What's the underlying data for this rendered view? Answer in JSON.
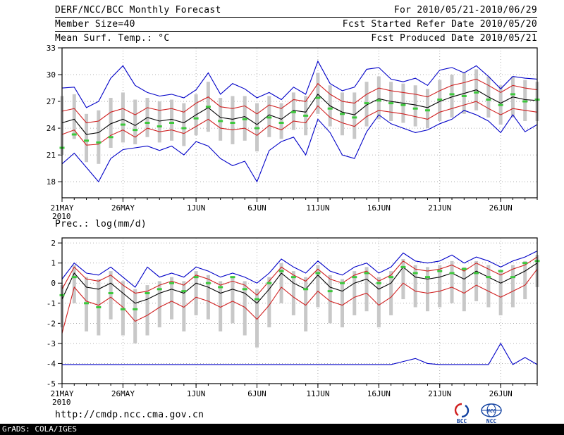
{
  "header": {
    "title": "DERF/NCC/BCC Monthly Forecast",
    "member_size": "Member Size=40",
    "for_range": "For 2010/05/21-2010/06/29",
    "fcst_started": "Fcst Started Refer Date 2010/05/20",
    "fcst_produced": "Fcst Produced Date 2010/05/21"
  },
  "footer": {
    "url": "http://cmdp.ncc.cma.gov.cn",
    "grads": "GrADS: COLA/IGES",
    "logo_bcc": "BCC",
    "logo_ncc": "NCC"
  },
  "chart_data": [
    {
      "type": "line",
      "title": "Mean Surf. Temp.: °C",
      "n": 40,
      "ylim": [
        16.2,
        33
      ],
      "yticks": [
        18,
        21,
        24,
        27,
        30,
        33
      ],
      "xtick_labels": [
        "21MAY",
        "26MAY",
        "1JUN",
        "6JUN",
        "11JUN",
        "16JUN",
        "21JUN",
        "26JUN"
      ],
      "xtick_positions": [
        0,
        5,
        11,
        16,
        21,
        26,
        31,
        36
      ],
      "x_year": "2010",
      "legend_note": "blue=ensemble max/min, red=spread bounds, black=ensemble mean, green=analysis, gray bars=member spread",
      "series": [
        {
          "name": "ensemble-max",
          "color": "#0000c8",
          "values": [
            28.5,
            28.6,
            26.3,
            27.0,
            29.6,
            31.0,
            28.8,
            28.0,
            27.6,
            27.8,
            27.4,
            28.3,
            30.2,
            27.8,
            29.0,
            28.4,
            27.4,
            28.0,
            27.2,
            28.6,
            27.8,
            31.5,
            29.0,
            28.2,
            28.6,
            30.6,
            30.8,
            29.5,
            29.2,
            29.6,
            28.8,
            30.5,
            30.8,
            30.2,
            31.0,
            29.8,
            28.4,
            29.8,
            29.6,
            29.5
          ]
        },
        {
          "name": "upper-bound",
          "color": "#d02020",
          "values": [
            25.9,
            26.2,
            24.6,
            24.8,
            25.8,
            26.2,
            25.5,
            26.3,
            26.0,
            26.2,
            25.8,
            26.8,
            27.5,
            26.4,
            26.2,
            26.5,
            25.6,
            26.6,
            26.2,
            27.2,
            27.0,
            29.0,
            27.8,
            27.0,
            26.8,
            27.8,
            28.5,
            28.2,
            28.0,
            27.8,
            27.5,
            28.2,
            28.8,
            29.1,
            29.5,
            28.8,
            28.0,
            28.8,
            28.5,
            28.3
          ]
        },
        {
          "name": "ensemble-mean",
          "color": "#000000",
          "values": [
            24.6,
            25.0,
            23.3,
            23.5,
            24.5,
            25.0,
            24.3,
            25.2,
            24.8,
            25.0,
            24.6,
            25.5,
            26.3,
            25.2,
            25.0,
            25.3,
            24.4,
            25.5,
            25.0,
            26.0,
            25.8,
            27.8,
            26.5,
            25.8,
            25.5,
            26.6,
            27.3,
            27.0,
            26.8,
            26.6,
            26.3,
            27.0,
            27.5,
            27.9,
            28.3,
            27.5,
            26.8,
            27.5,
            27.2,
            27.1
          ]
        },
        {
          "name": "lower-bound",
          "color": "#d02020",
          "values": [
            23.3,
            23.8,
            22.1,
            22.2,
            23.2,
            23.8,
            23.0,
            24.0,
            23.6,
            23.8,
            23.4,
            24.2,
            25.0,
            24.0,
            23.8,
            24.0,
            23.2,
            24.3,
            23.8,
            24.8,
            24.6,
            26.5,
            25.2,
            24.6,
            24.2,
            25.3,
            26.0,
            25.8,
            25.6,
            25.3,
            25.0,
            25.8,
            26.2,
            26.6,
            27.0,
            26.2,
            25.5,
            26.2,
            26.0,
            25.8
          ]
        },
        {
          "name": "ensemble-min",
          "color": "#0000c8",
          "values": [
            20.0,
            21.2,
            19.6,
            18.0,
            20.6,
            21.6,
            21.8,
            22.0,
            21.5,
            22.0,
            21.0,
            22.5,
            22.0,
            20.6,
            19.8,
            20.3,
            18.0,
            21.5,
            22.5,
            23.0,
            21.0,
            25.0,
            23.5,
            21.0,
            20.6,
            23.6,
            25.5,
            24.5,
            24.0,
            23.5,
            23.8,
            24.5,
            25.0,
            26.0,
            25.5,
            24.8,
            23.5,
            25.5,
            23.6,
            24.4
          ]
        }
      ],
      "bars": {
        "color": "#c8c8c8",
        "low": [
          21.0,
          22.8,
          20.2,
          20.0,
          21.8,
          22.4,
          22.2,
          23.0,
          22.4,
          22.6,
          22.0,
          23.2,
          23.6,
          22.6,
          22.2,
          22.6,
          21.4,
          23.0,
          22.8,
          23.8,
          23.2,
          25.6,
          24.2,
          23.2,
          22.8,
          24.2,
          25.0,
          24.8,
          24.6,
          24.2,
          24.0,
          24.8,
          25.2,
          25.6,
          26.0,
          25.2,
          24.4,
          25.2,
          24.8,
          24.8
        ],
        "high": [
          27.6,
          27.8,
          25.6,
          26.0,
          27.4,
          28.0,
          27.2,
          27.4,
          27.0,
          27.2,
          26.8,
          27.8,
          29.2,
          27.4,
          27.6,
          27.6,
          26.8,
          27.6,
          26.8,
          28.0,
          27.6,
          30.2,
          28.8,
          28.0,
          28.0,
          29.2,
          29.8,
          29.2,
          29.0,
          28.8,
          28.4,
          29.4,
          30.0,
          30.2,
          30.6,
          29.8,
          28.8,
          29.8,
          29.4,
          29.2
        ]
      },
      "markers": {
        "name": "analysis-dash",
        "color": "#3cc83c",
        "values": [
          21.8,
          23.3,
          22.6,
          22.4,
          23.0,
          24.4,
          23.8,
          24.6,
          24.2,
          24.6,
          24.0,
          25.1,
          26.4,
          24.8,
          24.6,
          25.0,
          24.0,
          25.2,
          24.6,
          25.8,
          25.4,
          27.4,
          26.2,
          25.6,
          25.2,
          26.8,
          27.1,
          26.8,
          26.6,
          26.2,
          26.0,
          27.2,
          27.8,
          27.6,
          28.0,
          27.2,
          26.6,
          27.8,
          27.0,
          27.2
        ]
      }
    },
    {
      "type": "line",
      "title": "Prec.: log(mm/d)",
      "n": 40,
      "ylim": [
        -5,
        2.25
      ],
      "yticks": [
        -5,
        -4,
        -3,
        -2,
        -1,
        0,
        1,
        2
      ],
      "xtick_labels": [
        "21MAY",
        "26MAY",
        "1JUN",
        "6JUN",
        "11JUN",
        "16JUN",
        "21JUN",
        "26JUN"
      ],
      "xtick_positions": [
        0,
        5,
        11,
        16,
        21,
        26,
        31,
        36
      ],
      "x_year": "2010",
      "legend_note": "blue=ensemble max/min, red=spread bounds, black=ensemble mean, green=analysis, gray bars=member spread",
      "series": [
        {
          "name": "ensemble-max",
          "color": "#0000c8",
          "values": [
            0.2,
            1.0,
            0.5,
            0.4,
            0.8,
            0.3,
            -0.2,
            0.8,
            0.3,
            0.5,
            0.3,
            0.8,
            0.6,
            0.3,
            0.5,
            0.3,
            0.0,
            0.5,
            1.2,
            0.8,
            0.5,
            1.1,
            0.6,
            0.4,
            0.8,
            1.0,
            0.5,
            0.8,
            1.5,
            1.1,
            1.0,
            1.1,
            1.4,
            1.0,
            1.3,
            1.1,
            0.8,
            1.1,
            1.3,
            1.6
          ]
        },
        {
          "name": "upper-bound",
          "color": "#d02020",
          "values": [
            -0.3,
            0.8,
            0.2,
            0.1,
            0.4,
            -0.1,
            -0.5,
            -0.4,
            -0.1,
            0.1,
            -0.1,
            0.4,
            0.2,
            -0.1,
            0.1,
            -0.1,
            -0.6,
            0.1,
            0.8,
            0.4,
            0.1,
            0.7,
            0.2,
            0.0,
            0.4,
            0.6,
            0.1,
            0.4,
            1.1,
            0.7,
            0.6,
            0.7,
            0.9,
            0.6,
            1.0,
            0.7,
            0.4,
            0.7,
            0.9,
            1.3
          ]
        },
        {
          "name": "ensemble-mean",
          "color": "#000000",
          "values": [
            -0.8,
            0.5,
            -0.2,
            -0.3,
            0.0,
            -0.5,
            -1.0,
            -0.8,
            -0.5,
            -0.3,
            -0.5,
            0.0,
            -0.2,
            -0.5,
            -0.3,
            -0.5,
            -1.0,
            -0.3,
            0.5,
            0.0,
            -0.3,
            0.4,
            -0.2,
            -0.4,
            0.0,
            0.2,
            -0.3,
            0.0,
            0.8,
            0.3,
            0.2,
            0.3,
            0.5,
            0.2,
            0.6,
            0.3,
            0.0,
            0.3,
            0.6,
            1.0
          ]
        },
        {
          "name": "lower-bound",
          "color": "#d02020",
          "values": [
            -2.5,
            -0.2,
            -0.9,
            -1.1,
            -0.7,
            -1.2,
            -1.9,
            -1.6,
            -1.2,
            -0.9,
            -1.2,
            -0.7,
            -0.9,
            -1.2,
            -0.9,
            -1.2,
            -1.8,
            -1.1,
            -0.2,
            -0.7,
            -1.1,
            -0.4,
            -0.9,
            -1.1,
            -0.7,
            -0.5,
            -1.1,
            -0.7,
            0.0,
            -0.4,
            -0.5,
            -0.4,
            -0.2,
            -0.5,
            -0.1,
            -0.4,
            -0.7,
            -0.4,
            -0.1,
            0.7
          ]
        },
        {
          "name": "ensemble-min",
          "color": "#0000c8",
          "values": [
            -4.05,
            -4.05,
            -4.05,
            -4.05,
            -4.05,
            -4.05,
            -4.05,
            -4.05,
            -4.05,
            -4.05,
            -4.05,
            -4.05,
            -4.05,
            -4.05,
            -4.05,
            -4.05,
            -4.05,
            -4.05,
            -4.05,
            -4.05,
            -4.05,
            -4.05,
            -4.05,
            -4.05,
            -4.05,
            -4.05,
            -4.05,
            -4.05,
            -3.9,
            -3.75,
            -4.0,
            -4.05,
            -4.05,
            -4.05,
            -4.05,
            -4.05,
            -3.0,
            -4.05,
            -3.7,
            -4.05
          ]
        }
      ],
      "bars": {
        "color": "#c8c8c8",
        "low": [
          -2.2,
          -1.0,
          -2.4,
          -2.6,
          -1.8,
          -2.6,
          -3.0,
          -2.6,
          -2.2,
          -1.8,
          -2.4,
          -1.6,
          -1.8,
          -2.4,
          -2.0,
          -2.6,
          -3.2,
          -2.2,
          -1.0,
          -1.6,
          -2.4,
          -1.2,
          -2.0,
          -2.2,
          -1.6,
          -1.4,
          -2.2,
          -1.6,
          -0.8,
          -1.2,
          -1.4,
          -1.2,
          -1.0,
          -1.4,
          -0.9,
          -1.2,
          -1.6,
          -1.2,
          -0.8,
          -0.2
        ],
        "high": [
          -0.1,
          0.9,
          0.3,
          0.2,
          0.6,
          0.1,
          -0.3,
          -0.1,
          0.1,
          0.3,
          0.1,
          0.6,
          0.4,
          0.1,
          0.3,
          0.1,
          -0.3,
          0.3,
          1.0,
          0.6,
          0.3,
          0.9,
          0.4,
          0.2,
          0.6,
          0.8,
          0.3,
          0.6,
          1.2,
          0.9,
          0.8,
          0.9,
          1.1,
          0.8,
          1.1,
          0.9,
          0.6,
          0.9,
          1.1,
          1.4
        ]
      },
      "markers": {
        "name": "analysis-dash",
        "color": "#3cc83c",
        "values": [
          -0.6,
          0.3,
          -1.0,
          -1.2,
          -0.5,
          -1.3,
          -1.3,
          -0.5,
          -0.3,
          0.0,
          -0.4,
          0.3,
          0.0,
          -0.2,
          0.3,
          -0.3,
          -0.8,
          0.0,
          0.6,
          0.3,
          -0.3,
          0.5,
          -0.4,
          0.0,
          0.3,
          0.5,
          0.0,
          0.3,
          0.8,
          0.5,
          0.3,
          0.6,
          0.5,
          0.7,
          0.5,
          0.3,
          0.6,
          0.3,
          1.0,
          1.1
        ]
      }
    }
  ]
}
